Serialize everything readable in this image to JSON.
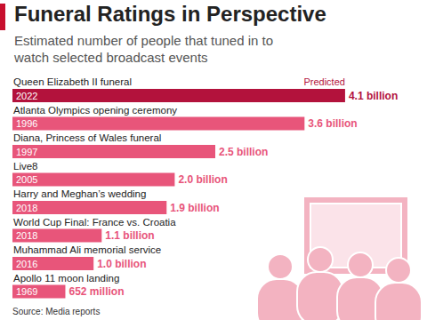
{
  "chart_data": {
    "type": "bar",
    "orientation": "horizontal",
    "title": "Funeral Ratings in Perspective",
    "subtitle": "Estimated number of people that tuned in to watch selected broadcast events",
    "source": "Source: Media reports",
    "categories": [
      "Queen Elizabeth II funeral",
      "Atlanta Olympics opening ceremony",
      "Diana, Princess of Wales funeral",
      "Live8",
      "Harry and Meghan’s wedding",
      "World Cup Final: France vs. Croatia",
      "Muhammad Ali memorial service",
      "Apollo 11 moon landing"
    ],
    "years": [
      "2022",
      "1996",
      "1997",
      "2005",
      "2018",
      "2018",
      "2016",
      "1969"
    ],
    "values": [
      4.1,
      3.6,
      2.5,
      2.0,
      1.9,
      1.1,
      1.0,
      0.652
    ],
    "value_labels": [
      "4.1 billion",
      "3.6 billion",
      "2.5 billion",
      "2.0 billion",
      "1.9 billion",
      "1.1 billion",
      "1.0 billion",
      "652 million"
    ],
    "colors": [
      "#b3123c",
      "#e8557a",
      "#e8557a",
      "#e8557a",
      "#e8557a",
      "#e8557a",
      "#e8557a",
      "#e8557a"
    ],
    "annotations": [
      {
        "category": "Queen Elizabeth II funeral",
        "text": "Predicted"
      }
    ],
    "xlim": [
      0,
      5
    ],
    "data_labels": true,
    "tick_labels": false,
    "grid": false
  }
}
